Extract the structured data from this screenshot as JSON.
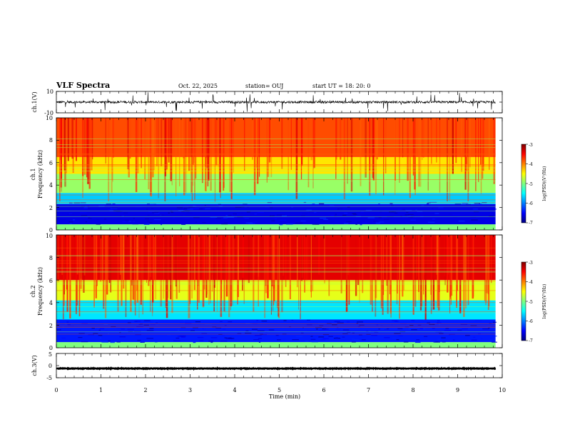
{
  "header": {
    "title": "VLF Spectra",
    "date": "Oct. 22, 2025",
    "station": "station= OUJ",
    "start": "start  UT =   18: 20: 0"
  },
  "chart_data": [
    {
      "type": "line",
      "name": "ch1-waveform",
      "ylabel": "ch.1(V)",
      "ylim": [
        -10,
        10
      ],
      "yticks": [
        "10",
        "-10"
      ],
      "xlim": [
        0,
        10
      ],
      "baseline_v": 0
    },
    {
      "type": "heatmap",
      "name": "ch1-spectrogram",
      "ylabel_lines": [
        "ch.1",
        "Frequency  (kHz)"
      ],
      "ylim": [
        0,
        10
      ],
      "yticks": [
        "0",
        "2",
        "4",
        "6",
        "8",
        "10"
      ],
      "xlim": [
        0,
        9.85
      ],
      "band_log_psd": [
        {
          "f": [
            0.0,
            0.5
          ],
          "value": -5.0
        },
        {
          "f": [
            0.5,
            2.3
          ],
          "value": -6.6
        },
        {
          "f": [
            2.3,
            3.3
          ],
          "value": -5.7
        },
        {
          "f": [
            3.3,
            5.0
          ],
          "value": -4.9
        },
        {
          "f": [
            5.0,
            6.5
          ],
          "value": -4.4
        },
        {
          "f": [
            6.5,
            10.0
          ],
          "value": -3.8
        }
      ],
      "colorbar": {
        "label": "log(PSD)(V²/Hz)",
        "range": [
          -7,
          -3
        ],
        "ticks": [
          "-3",
          "-4",
          "-5",
          "-6",
          "-7"
        ]
      }
    },
    {
      "type": "heatmap",
      "name": "ch2-spectrogram",
      "ylabel_lines": [
        "ch.2",
        "Frequency  (kHz)"
      ],
      "ylim": [
        0,
        10
      ],
      "yticks": [
        "0",
        "2",
        "4",
        "6",
        "8",
        "10"
      ],
      "xlim": [
        0,
        9.85
      ],
      "band_log_psd": [
        {
          "f": [
            0.0,
            0.5
          ],
          "value": -5.0
        },
        {
          "f": [
            0.5,
            2.5
          ],
          "value": -6.4
        },
        {
          "f": [
            2.5,
            4.2
          ],
          "value": -5.6
        },
        {
          "f": [
            4.2,
            6.0
          ],
          "value": -4.6
        },
        {
          "f": [
            6.0,
            10.0
          ],
          "value": -3.4
        }
      ],
      "colorbar": {
        "label": "log(PSD)(V²/Hz)",
        "range": [
          -7,
          -3
        ],
        "ticks": [
          "-3",
          "-4",
          "-5",
          "-6",
          "-7"
        ]
      }
    },
    {
      "type": "line",
      "name": "ch3-waveform",
      "ylabel": "ch.3(V)",
      "ylim": [
        -5,
        5
      ],
      "yticks": [
        "5",
        "0",
        "-5"
      ],
      "xlim": [
        0,
        10
      ],
      "baseline_v": -1.2
    }
  ],
  "xaxis": {
    "label": "Time  (min)",
    "ticks": [
      "0",
      "1",
      "2",
      "3",
      "4",
      "5",
      "6",
      "7",
      "8",
      "9",
      "10"
    ],
    "range": [
      0,
      10
    ]
  }
}
